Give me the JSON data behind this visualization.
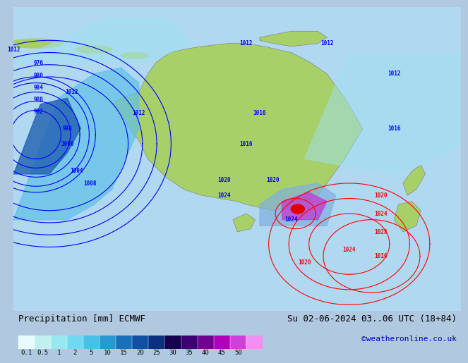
{
  "title_left": "Precipitation [mm] ECMWF",
  "title_right": "Su 02-06-2024 03..06 UTC (18+84)",
  "credit": "©weatheronline.co.uk",
  "colorbar_values": [
    0.1,
    0.5,
    1,
    2,
    5,
    10,
    15,
    20,
    25,
    30,
    35,
    40,
    45,
    50
  ],
  "colorbar_colors": [
    "#e0f8f8",
    "#c0f0f0",
    "#a0e8f0",
    "#80d8f0",
    "#60c8e8",
    "#40a8d8",
    "#2080c0",
    "#1060a0",
    "#104080",
    "#200060",
    "#500080",
    "#8000a0",
    "#c000c0",
    "#e040e0",
    "#ff80ff"
  ],
  "fig_width": 6.34,
  "fig_height": 4.9,
  "bg_color": "#c8e8f8",
  "map_bg": "#c8e8f8"
}
